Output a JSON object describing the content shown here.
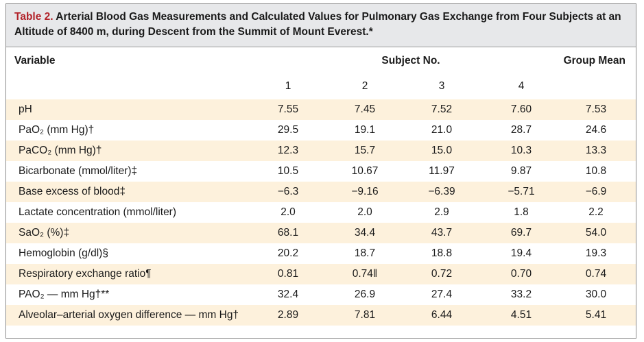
{
  "title": {
    "label": "Table 2.",
    "text": " Arterial Blood Gas Measurements and Calculated Values for Pulmonary Gas Exchange from Four Subjects at an Altitude of 8400 m, during Descent from the Summit of Mount Everest.*"
  },
  "headers": {
    "variable": "Variable",
    "subject": "Subject No.",
    "group": "Group Mean",
    "subject_numbers": [
      "1",
      "2",
      "3",
      "4"
    ]
  },
  "rows": [
    {
      "label": "pH",
      "values": [
        "7.55",
        "7.45",
        "7.52",
        "7.60",
        "7.53"
      ]
    },
    {
      "label": "PaO₂ (mm Hg)†",
      "values": [
        "29.5",
        "19.1",
        "21.0",
        "28.7",
        "24.6"
      ]
    },
    {
      "label": "PaCO₂ (mm Hg)†",
      "values": [
        "12.3",
        "15.7",
        "15.0",
        "10.3",
        "13.3"
      ]
    },
    {
      "label": "Bicarbonate (mmol/liter)‡",
      "values": [
        "10.5",
        "10.67",
        "11.97",
        "9.87",
        "10.8"
      ]
    },
    {
      "label": "Base excess of blood‡",
      "values": [
        "−6.3",
        "−9.16",
        "−6.39",
        "−5.71",
        "−6.9"
      ]
    },
    {
      "label": "Lactate concentration (mmol/liter)",
      "values": [
        "2.0",
        "2.0",
        "2.9",
        "1.8",
        "2.2"
      ]
    },
    {
      "label": "SaO₂ (%)‡",
      "values": [
        "68.1",
        "34.4",
        "43.7",
        "69.7",
        "54.0"
      ]
    },
    {
      "label": "Hemoglobin (g/dl)§",
      "values": [
        "20.2",
        "18.7",
        "18.8",
        "19.4",
        "19.3"
      ]
    },
    {
      "label": "Respiratory exchange ratio¶",
      "values": [
        "0.81",
        "0.74‖",
        "0.72",
        "0.70",
        "0.74"
      ]
    },
    {
      "label": "PAO₂ — mm Hg†**",
      "values": [
        "32.4",
        "26.9",
        "27.4",
        "33.2",
        "30.0"
      ]
    },
    {
      "label": "Alveolar–arterial oxygen difference — mm Hg†",
      "values": [
        "2.89",
        "7.81",
        "6.44",
        "4.51",
        "5.41"
      ]
    }
  ],
  "colors": {
    "title_label": "#b2232a",
    "title_background": "#e7e8ea",
    "row_shading": "#fdf1dc"
  }
}
